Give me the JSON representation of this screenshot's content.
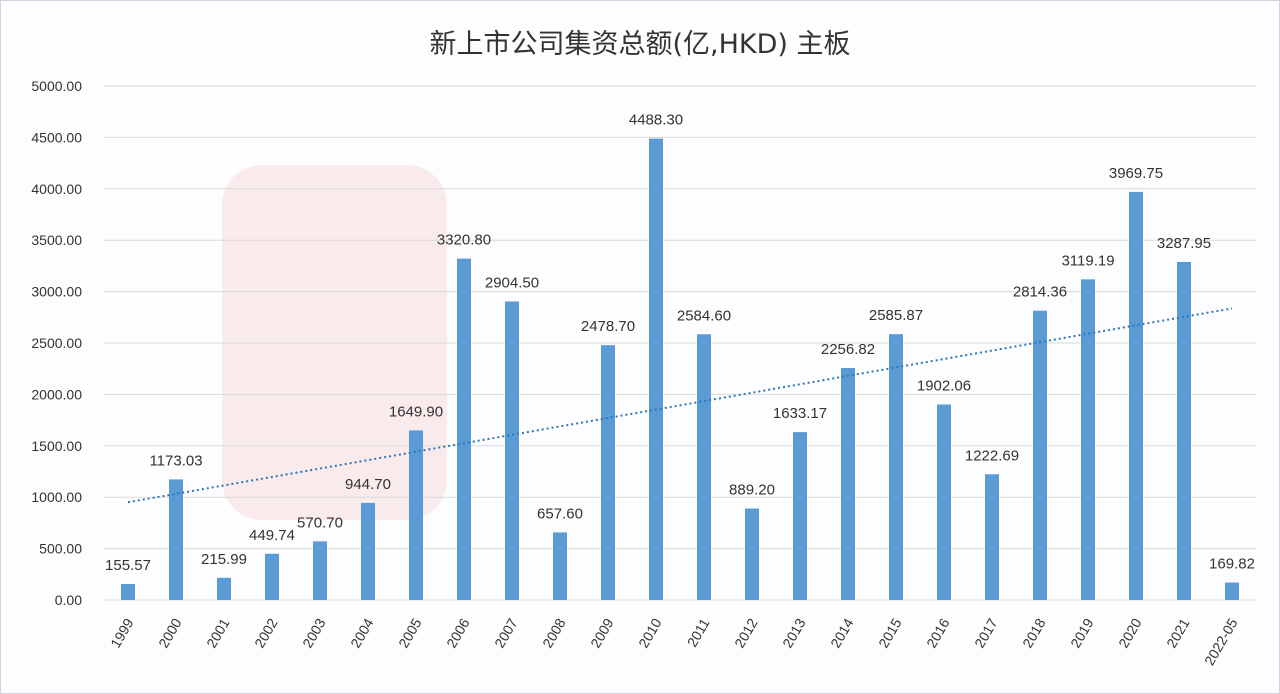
{
  "chart_data": {
    "type": "bar",
    "title": "新上市公司集资总额(亿,HKD) 主板",
    "xlabel": "",
    "ylabel": "",
    "categories": [
      "1999",
      "2000",
      "2001",
      "2002",
      "2003",
      "2004",
      "2005",
      "2006",
      "2007",
      "2008",
      "2009",
      "2010",
      "2011",
      "2012",
      "2013",
      "2014",
      "2015",
      "2016",
      "2017",
      "2018",
      "2019",
      "2020",
      "2021",
      "2022-05"
    ],
    "values": [
      155.57,
      1173.03,
      215.99,
      449.74,
      570.7,
      944.7,
      1649.9,
      3320.8,
      2904.5,
      657.6,
      2478.7,
      4488.3,
      2584.6,
      889.2,
      1633.17,
      2256.82,
      2585.87,
      1902.06,
      1222.69,
      2814.36,
      3119.19,
      3969.75,
      3287.95,
      169.82
    ],
    "data_labels": [
      "155.57",
      "1173.03",
      "215.99",
      "449.74",
      "570.70",
      "944.70",
      "1649.90",
      "3320.80",
      "2904.50",
      "657.60",
      "2478.70",
      "4488.30",
      "2584.60",
      "889.20",
      "1633.17",
      "2256.82",
      "2585.87",
      "1902.06",
      "1222.69",
      "2814.36",
      "3119.19",
      "3969.75",
      "3287.95",
      "169.82"
    ],
    "ylim": [
      0,
      5000
    ],
    "yticks": [
      "0.00",
      "500.00",
      "1000.00",
      "1500.00",
      "2000.00",
      "2500.00",
      "3000.00",
      "3500.00",
      "4000.00",
      "4500.00",
      "5000.00"
    ],
    "grid": true,
    "trendline": "linear",
    "legend": "none",
    "colors": {
      "bar": "#5b9bd5",
      "trendline": "#2e75b6",
      "grid": "#d9d9d9"
    }
  }
}
